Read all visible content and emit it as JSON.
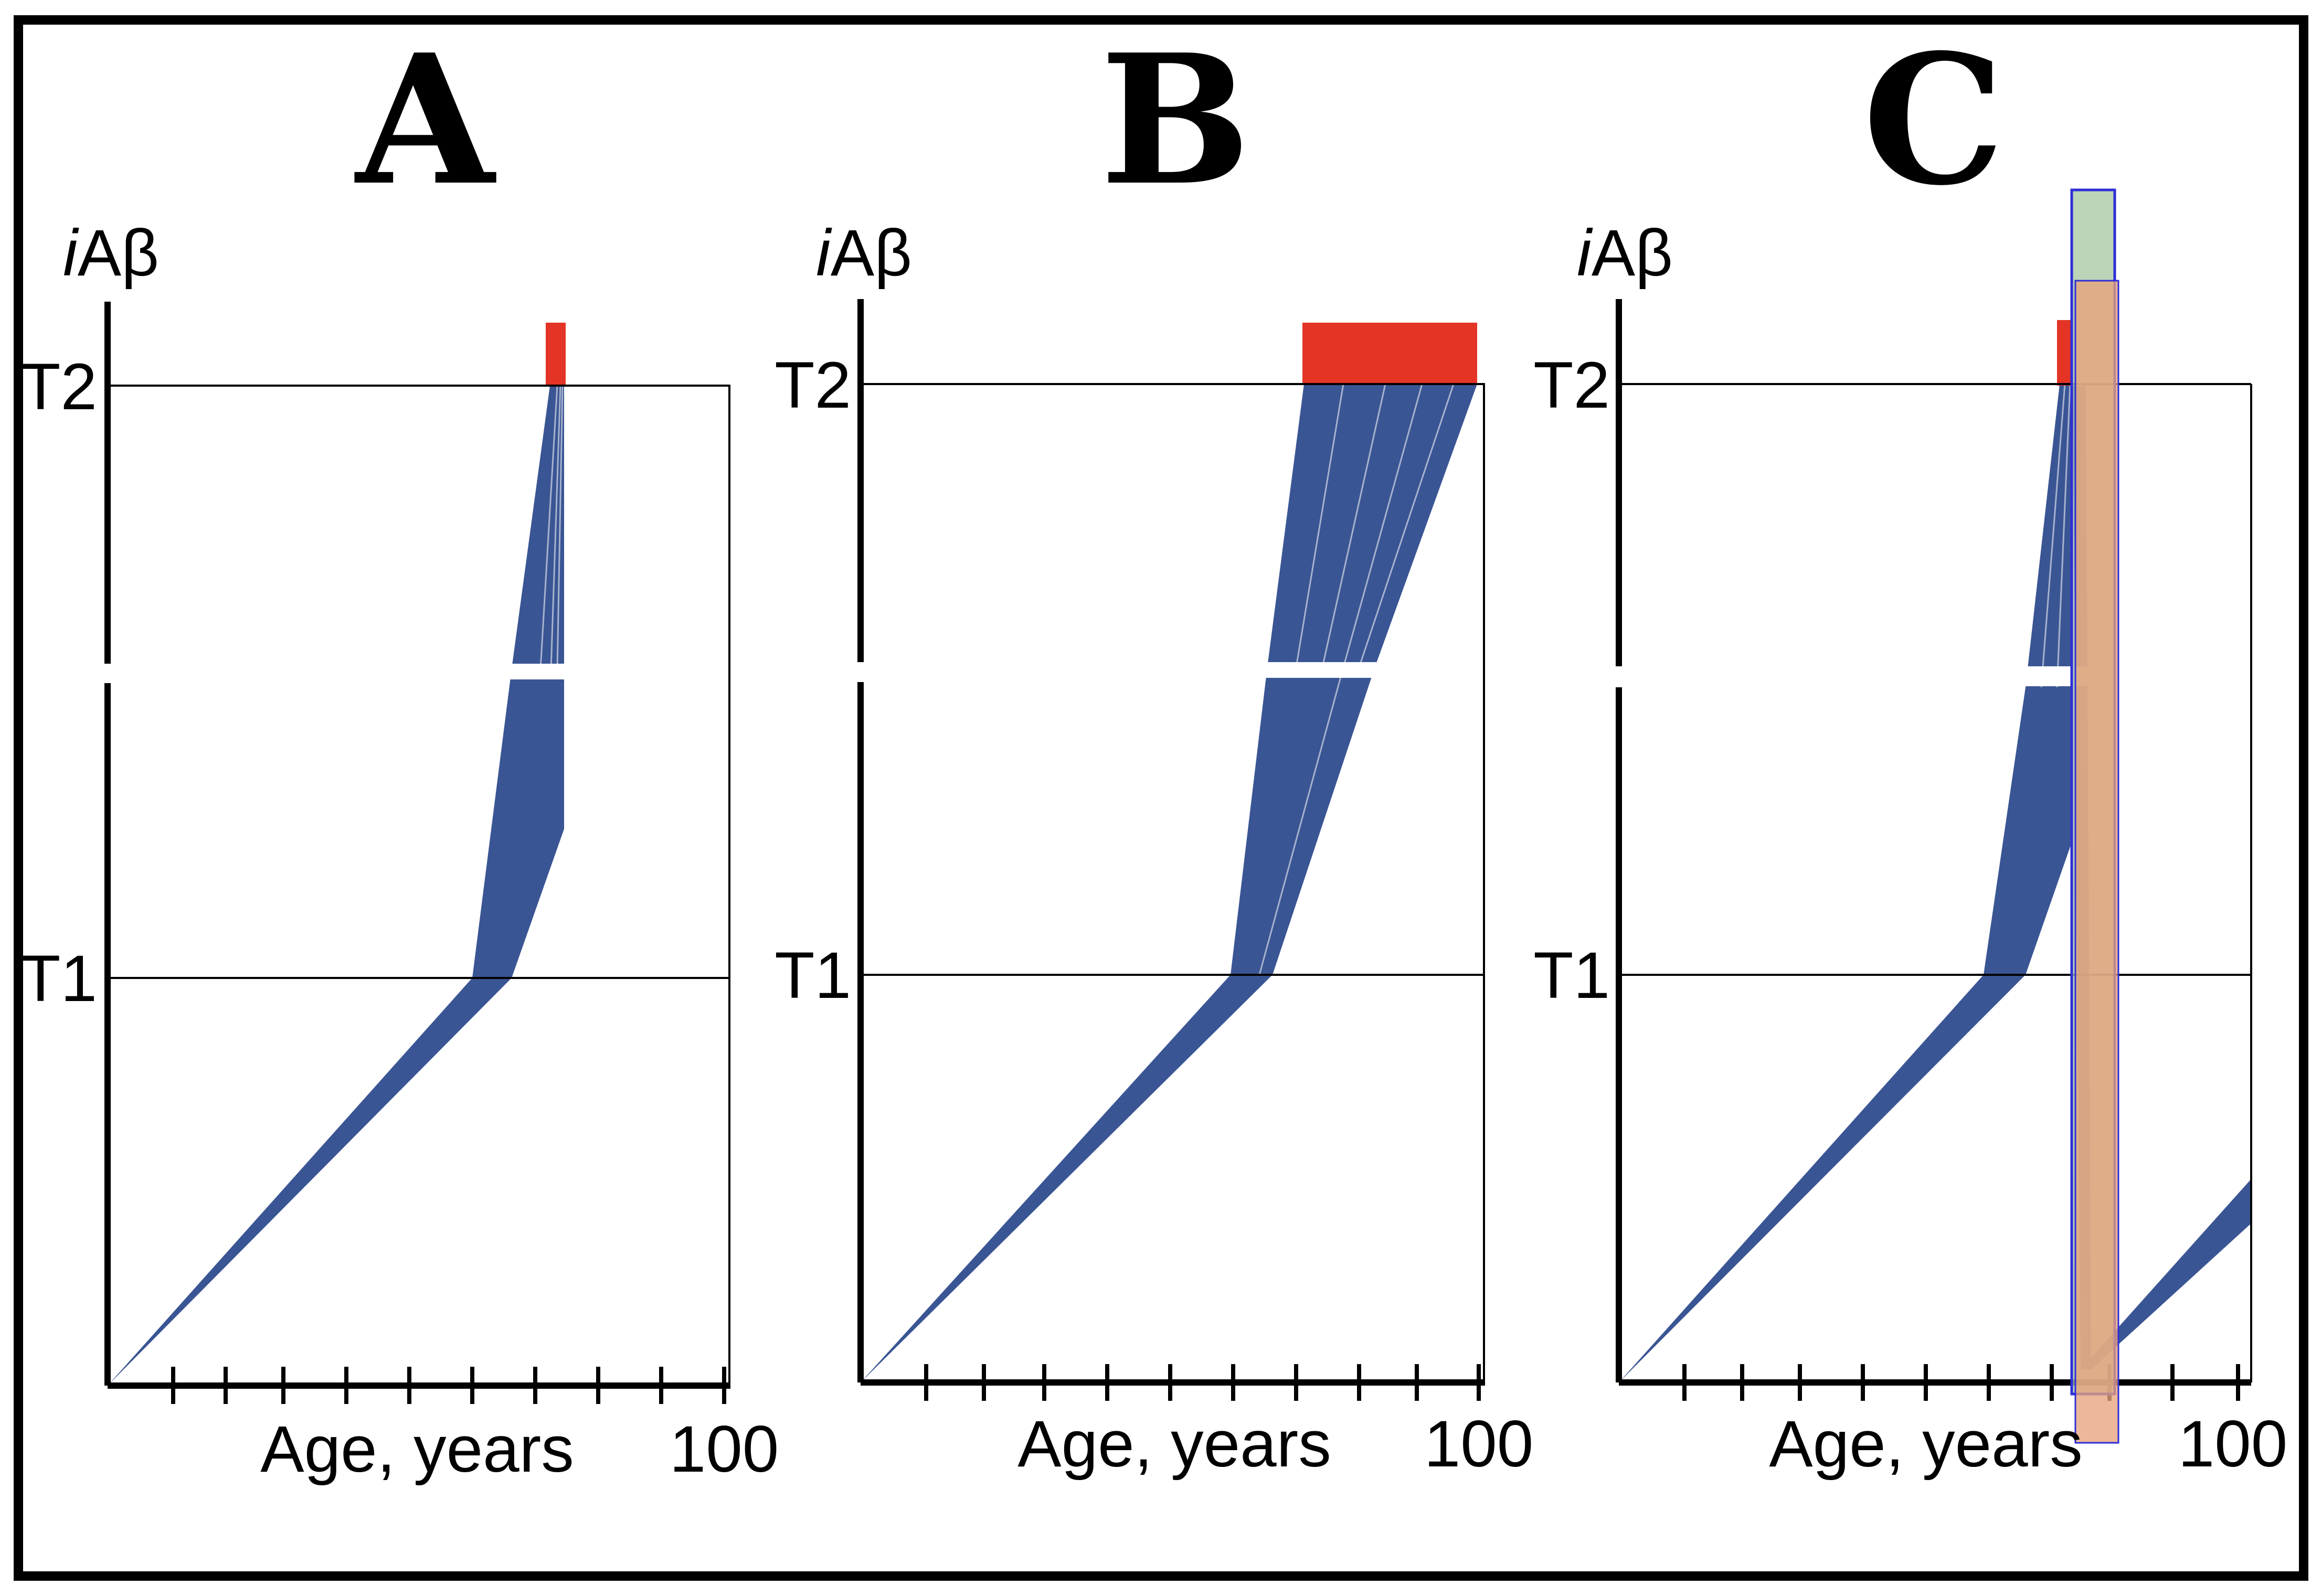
{
  "figure": {
    "panels": [
      {
        "letter": "A",
        "y_axis_symbol_italic": "i",
        "y_axis_symbol_rest": "Aβ",
        "threshold_high": "T2",
        "threshold_low": "T1",
        "x_axis_label": "Age, years",
        "x_axis_max": "100",
        "trajectory_color": "#3A5594",
        "onset_bar_color": "#E33425",
        "onset_spread": "narrow",
        "treatment": "none"
      },
      {
        "letter": "B",
        "y_axis_symbol_italic": "i",
        "y_axis_symbol_rest": "Aβ",
        "threshold_high": "T2",
        "threshold_low": "T1",
        "x_axis_label": "Age, years",
        "x_axis_max": "100",
        "trajectory_color": "#3A5594",
        "onset_bar_color": "#E33425",
        "onset_spread": "wide",
        "treatment": "none"
      },
      {
        "letter": "C",
        "y_axis_symbol_italic": "i",
        "y_axis_symbol_rest": "Aβ",
        "threshold_high": "T2",
        "threshold_low": "T1",
        "x_axis_label": "Age, years",
        "x_axis_max": "100",
        "trajectory_color": "#3A5594",
        "onset_bar_color": "#E33425",
        "onset_spread": "narrow",
        "treatment": "intervention window with reset of levels",
        "window_colors": [
          "#A9C8A4",
          "#E8A37C",
          "#2E2ED6"
        ]
      }
    ]
  }
}
